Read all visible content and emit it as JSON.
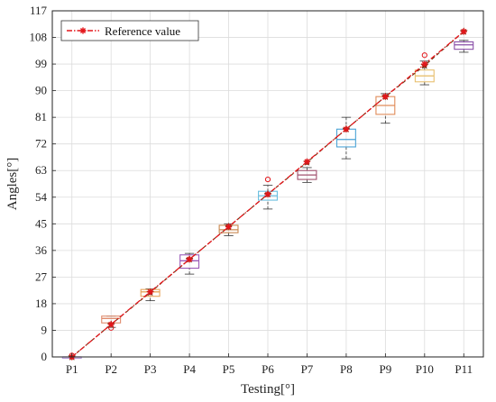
{
  "chart_data": {
    "type": "box",
    "title": "",
    "xlabel": "Testing[°]",
    "ylabel": "Angles[°]",
    "ylim": [
      0,
      117
    ],
    "yticks": [
      0,
      9,
      18,
      27,
      36,
      45,
      54,
      63,
      72,
      81,
      90,
      99,
      108,
      117
    ],
    "categories": [
      "P1",
      "P2",
      "P3",
      "P4",
      "P5",
      "P6",
      "P7",
      "P8",
      "P9",
      "P10",
      "P11"
    ],
    "grid": true,
    "legend_position": "top-left",
    "boxes": [
      {
        "category": "P1",
        "whisker_low": 0,
        "q1": 0,
        "median": 0,
        "q3": 0,
        "whisker_high": 0,
        "outliers": [
          0.5
        ],
        "color": "#b59ad6"
      },
      {
        "category": "P2",
        "whisker_low": 10,
        "q1": 11.5,
        "median": 13,
        "q3": 13.8,
        "whisker_high": 13.8,
        "outliers": [
          9.8
        ],
        "color": "#e08c6e"
      },
      {
        "category": "P3",
        "whisker_low": 19,
        "q1": 20.5,
        "median": 22,
        "q3": 22.8,
        "whisker_high": 23,
        "outliers": [],
        "color": "#e8a45a"
      },
      {
        "category": "P4",
        "whisker_low": 28,
        "q1": 30,
        "median": 32.5,
        "q3": 34.5,
        "whisker_high": 35,
        "outliers": [],
        "color": "#9b5bb8"
      },
      {
        "category": "P5",
        "whisker_low": 41,
        "q1": 42,
        "median": 43,
        "q3": 44.5,
        "whisker_high": 45,
        "outliers": [],
        "color": "#c98850"
      },
      {
        "category": "P6",
        "whisker_low": 50,
        "q1": 53,
        "median": 54.5,
        "q3": 56,
        "whisker_high": 58,
        "outliers": [
          60
        ],
        "color": "#6bbfe0"
      },
      {
        "category": "P7",
        "whisker_low": 59,
        "q1": 60,
        "median": 61.5,
        "q3": 63,
        "whisker_high": 64,
        "outliers": [],
        "color": "#a0506e"
      },
      {
        "category": "P8",
        "whisker_low": 67,
        "q1": 71,
        "median": 73.5,
        "q3": 77,
        "whisker_high": 81,
        "outliers": [],
        "color": "#4aa3d6"
      },
      {
        "category": "P9",
        "whisker_low": 79,
        "q1": 82,
        "median": 85,
        "q3": 88,
        "whisker_high": 89,
        "outliers": [],
        "color": "#e08c5a"
      },
      {
        "category": "P10",
        "whisker_low": 92,
        "q1": 93,
        "median": 95,
        "q3": 97,
        "whisker_high": 100,
        "outliers": [
          102
        ],
        "color": "#e8c070"
      },
      {
        "category": "P11",
        "whisker_low": 103,
        "q1": 104,
        "median": 105.5,
        "q3": 106.5,
        "whisker_high": 107,
        "outliers": [],
        "color": "#8a4fa8"
      }
    ],
    "series": [
      {
        "name": "Reference value",
        "type": "line",
        "style": "dash-dot",
        "marker": "asterisk",
        "color": "#e3161b",
        "values": [
          0,
          11,
          22,
          33,
          44,
          55,
          66,
          77,
          88,
          99,
          110
        ]
      }
    ],
    "mean_line": {
      "color": "#6b3a16",
      "style": "dashed",
      "marker": "star",
      "values": [
        0,
        11,
        21.8,
        33,
        44,
        55,
        65.8,
        77,
        88,
        98.5,
        110
      ]
    }
  }
}
